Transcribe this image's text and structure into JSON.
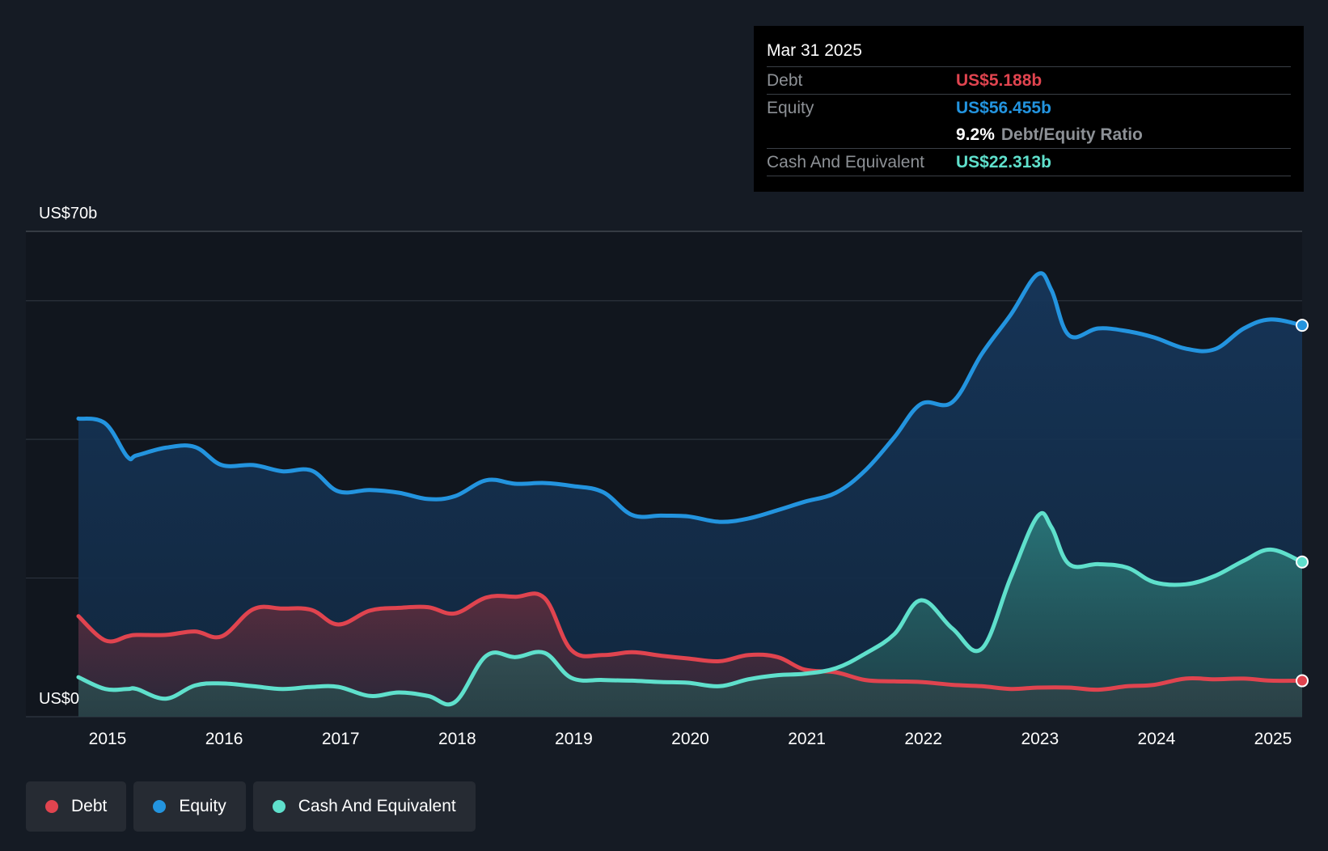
{
  "chart_data": {
    "type": "area",
    "title": "",
    "xlabel": "",
    "ylabel": "",
    "ylim": [
      0,
      70
    ],
    "y_axis_labels": {
      "top": "US$70b",
      "bottom": "US$0"
    },
    "x_ticks": [
      "2015",
      "2016",
      "2017",
      "2018",
      "2019",
      "2020",
      "2021",
      "2022",
      "2023",
      "2024",
      "2025"
    ],
    "x_range": [
      2014.75,
      2025.25
    ],
    "gridlines": [
      0,
      20,
      40,
      60,
      70
    ],
    "series": [
      {
        "name": "Equity",
        "color": "#2394df",
        "x": [
          2014.75,
          2014.98,
          2015.17,
          2015.25,
          2015.5,
          2015.75,
          2015.98,
          2016.25,
          2016.5,
          2016.75,
          2016.98,
          2017.25,
          2017.5,
          2017.75,
          2017.98,
          2018.25,
          2018.5,
          2018.75,
          2018.98,
          2019.25,
          2019.5,
          2019.75,
          2019.98,
          2020.25,
          2020.5,
          2020.75,
          2020.98,
          2021.25,
          2021.5,
          2021.75,
          2021.98,
          2022.25,
          2022.5,
          2022.75,
          2022.98,
          2023.1,
          2023.25,
          2023.5,
          2023.75,
          2023.98,
          2024.25,
          2024.5,
          2024.75,
          2024.98,
          2025.25
        ],
        "values": [
          43.0,
          42.3,
          37.5,
          37.7,
          38.8,
          38.9,
          36.3,
          36.3,
          35.4,
          35.5,
          32.5,
          32.7,
          32.3,
          31.4,
          31.8,
          34.1,
          33.6,
          33.7,
          33.3,
          32.4,
          29.1,
          29.0,
          28.9,
          28.1,
          28.6,
          29.8,
          31.0,
          32.3,
          35.5,
          40.3,
          45.1,
          45.4,
          52.3,
          58.0,
          63.8,
          61.5,
          55.0,
          56.0,
          55.6,
          54.7,
          53.1,
          53.0,
          56.0,
          57.3,
          56.455
        ]
      },
      {
        "name": "Debt",
        "color": "#e0444f",
        "x": [
          2014.75,
          2014.98,
          2015.17,
          2015.25,
          2015.5,
          2015.75,
          2015.98,
          2016.25,
          2016.5,
          2016.75,
          2016.98,
          2017.25,
          2017.5,
          2017.75,
          2017.98,
          2018.25,
          2018.5,
          2018.75,
          2018.98,
          2019.25,
          2019.5,
          2019.75,
          2019.98,
          2020.25,
          2020.5,
          2020.75,
          2020.98,
          2021.25,
          2021.5,
          2021.75,
          2021.98,
          2022.25,
          2022.5,
          2022.75,
          2022.98,
          2023.25,
          2023.5,
          2023.75,
          2023.98,
          2024.25,
          2024.5,
          2024.75,
          2024.98,
          2025.25
        ],
        "values": [
          14.5,
          11.0,
          11.6,
          11.8,
          11.8,
          12.3,
          11.6,
          15.5,
          15.6,
          15.4,
          13.3,
          15.3,
          15.7,
          15.8,
          14.9,
          17.2,
          17.3,
          17.1,
          9.6,
          8.9,
          9.3,
          8.8,
          8.4,
          8.0,
          8.9,
          8.6,
          6.8,
          6.4,
          5.3,
          5.1,
          5.0,
          4.6,
          4.4,
          4.0,
          4.2,
          4.2,
          3.9,
          4.4,
          4.6,
          5.5,
          5.4,
          5.5,
          5.2,
          5.188
        ]
      },
      {
        "name": "Cash And Equivalent",
        "color": "#5fe0cc",
        "x": [
          2014.75,
          2014.98,
          2015.17,
          2015.25,
          2015.5,
          2015.75,
          2015.98,
          2016.25,
          2016.5,
          2016.75,
          2016.98,
          2017.25,
          2017.5,
          2017.75,
          2017.98,
          2018.25,
          2018.5,
          2018.75,
          2018.98,
          2019.25,
          2019.5,
          2019.75,
          2019.98,
          2020.25,
          2020.5,
          2020.75,
          2020.98,
          2021.25,
          2021.5,
          2021.75,
          2021.98,
          2022.25,
          2022.5,
          2022.75,
          2022.98,
          2023.1,
          2023.25,
          2023.5,
          2023.75,
          2023.98,
          2024.25,
          2024.5,
          2024.75,
          2024.98,
          2025.25
        ],
        "values": [
          5.7,
          4.0,
          4.0,
          4.0,
          2.6,
          4.5,
          4.8,
          4.4,
          4.0,
          4.3,
          4.3,
          3.0,
          3.5,
          3.0,
          2.1,
          8.8,
          8.6,
          9.2,
          5.6,
          5.3,
          5.2,
          5.0,
          4.9,
          4.4,
          5.4,
          6.0,
          6.2,
          7.0,
          9.1,
          11.9,
          16.8,
          12.7,
          9.8,
          20.1,
          28.9,
          27.3,
          22.0,
          22.0,
          21.5,
          19.4,
          19.1,
          20.3,
          22.5,
          24.1,
          22.313
        ]
      }
    ]
  },
  "tooltip": {
    "date": "Mar 31 2025",
    "debt_label": "Debt",
    "debt_value": "US$5.188b",
    "equity_label": "Equity",
    "equity_value": "US$56.455b",
    "ratio_value": "9.2%",
    "ratio_label": "Debt/Equity Ratio",
    "cash_label": "Cash And Equivalent",
    "cash_value": "US$22.313b"
  },
  "legend": {
    "debt": "Debt",
    "equity": "Equity",
    "cash": "Cash And Equivalent",
    "debt_color": "#e0444f",
    "equity_color": "#2394df",
    "cash_color": "#5fe0cc"
  }
}
